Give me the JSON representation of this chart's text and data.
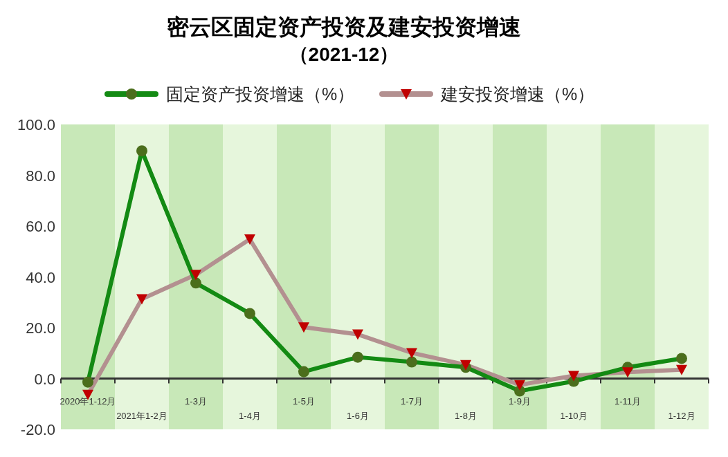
{
  "chart_data": {
    "type": "line",
    "title": "密云区固定资产投资及建安投资增速",
    "subtitle": "（2021-12）",
    "categories": [
      "2020年1-12月",
      "2021年1-2月",
      "1-3月",
      "1-4月",
      "1-5月",
      "1-6月",
      "1-7月",
      "1-8月",
      "1-9月",
      "1-10月",
      "1-11月",
      "1-12月"
    ],
    "series": [
      {
        "name": "固定资产投资增速（%）",
        "color": "#138a13",
        "marker": "circle",
        "values": [
          -1.4,
          89.6,
          37.6,
          25.6,
          2.7,
          8.4,
          6.5,
          4.4,
          -4.9,
          -1.1,
          4.4,
          7.9
        ]
      },
      {
        "name": "建安投资增速（%）",
        "color": "#b39090",
        "marker": "triangle",
        "values": [
          -6.3,
          31.3,
          40.9,
          54.8,
          20.2,
          17.4,
          10.1,
          5.4,
          -2.5,
          1.1,
          2.5,
          3.5
        ]
      }
    ],
    "ylim": [
      -20,
      100
    ],
    "yticks": [
      {
        "value": -20,
        "label": "-20.0"
      },
      {
        "value": 0,
        "label": "0.0"
      },
      {
        "value": 20,
        "label": "20.0"
      },
      {
        "value": 40,
        "label": "40.0"
      },
      {
        "value": 60,
        "label": "60.0"
      },
      {
        "value": 80,
        "label": "80.0"
      },
      {
        "value": 100,
        "label": "100.0"
      }
    ],
    "bands": [
      {
        "axis": "x",
        "from": "2020年1-12月",
        "to": "2020年1-12月",
        "color": "#c8e8b8"
      },
      {
        "axis": "x",
        "from": "1-3月",
        "to": "1-3月",
        "color": "#c8e8b8"
      },
      {
        "axis": "x",
        "from": "1-5月",
        "to": "1-5月",
        "color": "#c8e8b8"
      },
      {
        "axis": "x",
        "from": "1-7月",
        "to": "1-7月",
        "color": "#c8e8b8"
      },
      {
        "axis": "x",
        "from": "1-9月",
        "to": "1-9月",
        "color": "#c8e8b8"
      },
      {
        "axis": "x",
        "from": "1-11月",
        "to": "1-11月",
        "color": "#c8e8b8"
      }
    ],
    "legend": "top",
    "grid": false
  }
}
